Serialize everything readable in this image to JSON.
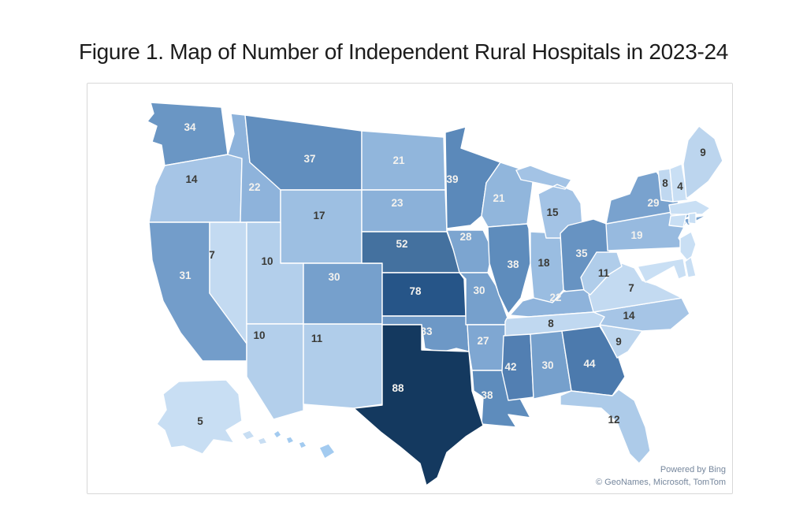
{
  "figure": {
    "title": "Figure 1. Map of Number of Independent Rural Hospitals in 2023-24"
  },
  "map": {
    "attribution_line1": "Powered by Bing",
    "attribution_line2": "© GeoNames, Microsoft, TomTom",
    "label_colors": {
      "light": "#F4F2EE",
      "dark": "#3A3A36"
    },
    "panel_border_color": "#D8D8D8",
    "background_color": "#FFFFFF"
  },
  "chart_data": {
    "type": "choropleth",
    "title": "Figure 1. Map of Number of Independent Rural Hospitals in 2023-24",
    "geography": "United States (states)",
    "value_name": "Number of Independent Rural Hospitals",
    "period": "2023-24",
    "legend": "none",
    "color_scale": {
      "min": 4,
      "max": 88,
      "min_color": "#C9DFF4",
      "max_color": "#14395F"
    },
    "states": [
      {
        "id": "wa",
        "name": "Washington",
        "value": 34,
        "fill": "#6A96C4",
        "label_color": "light"
      },
      {
        "id": "or",
        "name": "Oregon",
        "value": 14,
        "fill": "#A6C5E6",
        "label_color": "dark"
      },
      {
        "id": "ca",
        "name": "California",
        "value": 31,
        "fill": "#739DCA",
        "label_color": "light"
      },
      {
        "id": "nv",
        "name": "Nevada",
        "value": 7,
        "fill": "#C3DAF1",
        "label_color": "dark"
      },
      {
        "id": "id",
        "name": "Idaho",
        "value": 22,
        "fill": "#8EB3DB",
        "label_color": "light"
      },
      {
        "id": "mt",
        "name": "Montana",
        "value": 37,
        "fill": "#618EBE",
        "label_color": "light"
      },
      {
        "id": "wy",
        "name": "Wyoming",
        "value": 17,
        "fill": "#9DBFE2",
        "label_color": "dark"
      },
      {
        "id": "ut",
        "name": "Utah",
        "value": 10,
        "fill": "#B3CFEB",
        "label_color": "dark"
      },
      {
        "id": "az",
        "name": "Arizona",
        "value": 10,
        "fill": "#B3CFEB",
        "label_color": "dark"
      },
      {
        "id": "nm",
        "name": "New Mexico",
        "value": 11,
        "fill": "#B0CDEA",
        "label_color": "dark"
      },
      {
        "id": "co",
        "name": "Colorado",
        "value": 30,
        "fill": "#76A0CC",
        "label_color": "light"
      },
      {
        "id": "nd",
        "name": "North Dakota",
        "value": 21,
        "fill": "#91B6DC",
        "label_color": "light"
      },
      {
        "id": "sd",
        "name": "South Dakota",
        "value": 23,
        "fill": "#8BB1D9",
        "label_color": "light"
      },
      {
        "id": "ne",
        "name": "Nebraska",
        "value": 52,
        "fill": "#44719F",
        "label_color": "light"
      },
      {
        "id": "ks",
        "name": "Kansas",
        "value": 78,
        "fill": "#265588",
        "label_color": "light"
      },
      {
        "id": "ok",
        "name": "Oklahoma",
        "value": 33,
        "fill": "#6D98C6",
        "label_color": "light"
      },
      {
        "id": "mn",
        "name": "Minnesota",
        "value": 39,
        "fill": "#5B89BA",
        "label_color": "light"
      },
      {
        "id": "ia",
        "name": "Iowa",
        "value": 28,
        "fill": "#7CA5D0",
        "label_color": "light"
      },
      {
        "id": "mo",
        "name": "Missouri",
        "value": 30,
        "fill": "#76A0CC",
        "label_color": "light"
      },
      {
        "id": "ar",
        "name": "Arkansas",
        "value": 27,
        "fill": "#7FA7D2",
        "label_color": "light"
      },
      {
        "id": "la",
        "name": "Louisiana",
        "value": 38,
        "fill": "#5E8CBC",
        "label_color": "light"
      },
      {
        "id": "wi",
        "name": "Wisconsin",
        "value": 21,
        "fill": "#91B6DC",
        "label_color": "light"
      },
      {
        "id": "il",
        "name": "Illinois",
        "value": 38,
        "fill": "#5E8CBC",
        "label_color": "light"
      },
      {
        "id": "in",
        "name": "Indiana",
        "value": 18,
        "fill": "#9ABDE1",
        "label_color": "dark"
      },
      {
        "id": "mi",
        "name": "Michigan",
        "value": 15,
        "fill": "#A3C3E5",
        "label_color": "dark"
      },
      {
        "id": "oh",
        "name": "Ohio",
        "value": 35,
        "fill": "#6793C2",
        "label_color": "light"
      },
      {
        "id": "ky",
        "name": "Kentucky",
        "value": 22,
        "fill": "#8EB3DB",
        "label_color": "light"
      },
      {
        "id": "tn",
        "name": "Tennessee",
        "value": 8,
        "fill": "#C0D8F0",
        "label_color": "dark"
      },
      {
        "id": "ms",
        "name": "Mississippi",
        "value": 42,
        "fill": "#527FB2",
        "label_color": "light"
      },
      {
        "id": "al",
        "name": "Alabama",
        "value": 30,
        "fill": "#76A0CC",
        "label_color": "light"
      },
      {
        "id": "ga",
        "name": "Georgia",
        "value": 44,
        "fill": "#4C7AAD",
        "label_color": "light"
      },
      {
        "id": "fl",
        "name": "Florida",
        "value": 12,
        "fill": "#ADCBE9",
        "label_color": "dark"
      },
      {
        "id": "sc",
        "name": "South Carolina",
        "value": 9,
        "fill": "#BCD5EE",
        "label_color": "dark"
      },
      {
        "id": "nc",
        "name": "North Carolina",
        "value": 14,
        "fill": "#A6C5E6",
        "label_color": "dark"
      },
      {
        "id": "va",
        "name": "Virginia",
        "value": 7,
        "fill": "#C3DAF1",
        "label_color": "dark"
      },
      {
        "id": "wv",
        "name": "West Virginia",
        "value": 11,
        "fill": "#B0CDEA",
        "label_color": "dark"
      },
      {
        "id": "pa",
        "name": "Pennsylvania",
        "value": 19,
        "fill": "#97BADF",
        "label_color": "light"
      },
      {
        "id": "ny",
        "name": "New York",
        "value": 29,
        "fill": "#79A2CE",
        "label_color": "light"
      },
      {
        "id": "tx",
        "name": "Texas",
        "value": 88,
        "fill": "#14395F",
        "label_color": "light"
      },
      {
        "id": "vt",
        "name": "Vermont",
        "value": 8,
        "fill": "#C0D8F0",
        "label_color": "dark"
      },
      {
        "id": "nh",
        "name": "New Hampshire",
        "value": 4,
        "fill": "#C9DFF4",
        "label_color": "dark"
      },
      {
        "id": "me",
        "name": "Maine",
        "value": 9,
        "fill": "#BCD5EE",
        "label_color": "dark"
      },
      {
        "id": "ma",
        "name": "Massachusetts",
        "value": null,
        "fill": "#C9DFF4",
        "label_color": "dark"
      },
      {
        "id": "ct",
        "name": "Connecticut",
        "value": null,
        "fill": "#C9DFF4",
        "label_color": "dark"
      },
      {
        "id": "ri",
        "name": "Rhode Island",
        "value": null,
        "fill": "#C9DFF4",
        "label_color": "dark"
      },
      {
        "id": "nj",
        "name": "New Jersey",
        "value": null,
        "fill": "#C9DFF4",
        "label_color": "dark"
      },
      {
        "id": "de",
        "name": "Delaware",
        "value": null,
        "fill": "#C9DFF4",
        "label_color": "dark"
      },
      {
        "id": "md",
        "name": "Maryland",
        "value": null,
        "fill": "#C9DFF4",
        "label_color": "dark"
      },
      {
        "id": "ak",
        "name": "Alaska",
        "value": 5,
        "fill": "#C8DEF3",
        "label_color": "dark"
      },
      {
        "id": "hi",
        "name": "Hawaii",
        "value": null,
        "fill": "#A3CBF0",
        "label_color": "dark"
      }
    ]
  }
}
